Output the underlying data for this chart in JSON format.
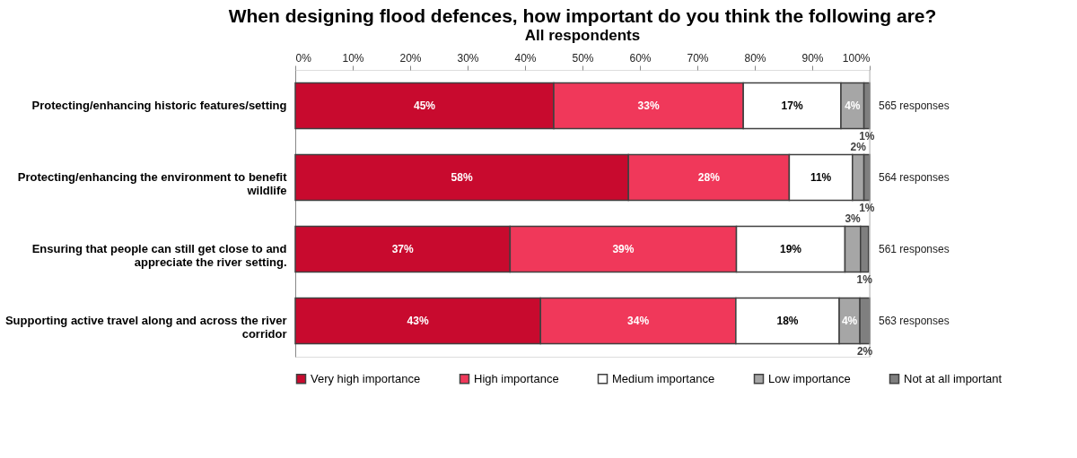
{
  "chart_data": {
    "type": "bar",
    "orientation": "horizontal",
    "stacked": true,
    "title": "When designing flood defences, how important do you think the following are?",
    "subtitle": "All respondents",
    "categories": [
      "Protecting/enhancing historic features/setting",
      "Protecting/enhancing the environment to benefit wildlife",
      "Ensuring that people can still get close to and appreciate the river setting.",
      "Supporting active travel along and across the river corridor"
    ],
    "series": [
      {
        "name": "Very high importance",
        "color": "#c80a2e",
        "values": [
          45,
          58,
          37.4,
          42.7
        ],
        "value_labels": [
          "45%",
          "58%",
          "37%",
          "43%"
        ]
      },
      {
        "name": "High importance",
        "color": "#f0385a",
        "values": [
          33,
          28,
          39.4,
          34.0
        ],
        "value_labels": [
          "33%",
          "28%",
          "39%",
          "34%"
        ]
      },
      {
        "name": "Medium importance",
        "color": "#ffffff",
        "values": [
          17,
          11,
          18.9,
          18.0
        ],
        "value_labels": [
          "17%",
          "11%",
          "19%",
          "18%"
        ]
      },
      {
        "name": "Low importance",
        "color": "#a6a6a6",
        "values": [
          4,
          2,
          2.7,
          3.6
        ],
        "value_labels": [
          "4%",
          "2%",
          "3%",
          "4%"
        ]
      },
      {
        "name": "Not at all important",
        "color": "#7f7f7f",
        "values": [
          1,
          1,
          1.4,
          1.7
        ],
        "value_labels": [
          "1%",
          "1%",
          "1%",
          "2%"
        ]
      }
    ],
    "xlim": [
      0,
      100
    ],
    "xticks": [
      {
        "value": 0,
        "label": "0%"
      },
      {
        "value": 10,
        "label": "10%"
      },
      {
        "value": 20,
        "label": "20%"
      },
      {
        "value": 30,
        "label": "30%"
      },
      {
        "value": 40,
        "label": "40%"
      },
      {
        "value": 50,
        "label": "50%"
      },
      {
        "value": 60,
        "label": "60%"
      },
      {
        "value": 70,
        "label": "70%"
      },
      {
        "value": 80,
        "label": "80%"
      },
      {
        "value": 90,
        "label": "90%"
      },
      {
        "value": 100,
        "label": "100%"
      }
    ],
    "annotations": [
      "565 responses",
      "564 responses",
      "561 responses",
      "563 responses"
    ],
    "grid": false,
    "legend": "bottom"
  }
}
